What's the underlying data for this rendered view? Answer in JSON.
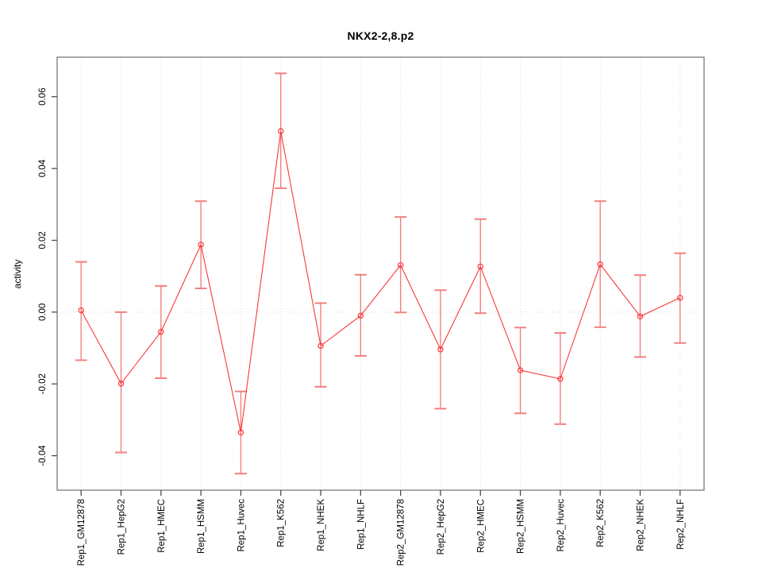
{
  "chart_data": {
    "type": "line",
    "title": "NKX2-2,8.p2",
    "ylabel": "activity",
    "xlabel": "",
    "categories": [
      "Rep1_GM12878",
      "Rep1_HepG2",
      "Rep1_HMEC",
      "Rep1_HSMM",
      "Rep1_Huvec",
      "Rep1_K562",
      "Rep1_NHEK",
      "Rep1_NHLF",
      "Rep2_GM12878",
      "Rep2_HepG2",
      "Rep2_HMEC",
      "Rep2_HSMM",
      "Rep2_Huvec",
      "Rep2_K562",
      "Rep2_NHEK",
      "Rep2_NHLF"
    ],
    "series": [
      {
        "name": "activity",
        "values": [
          0.0005,
          -0.0199,
          -0.0055,
          0.0188,
          -0.0335,
          0.0504,
          -0.0094,
          -0.001,
          0.0131,
          -0.0104,
          0.0127,
          -0.0162,
          -0.0186,
          0.0133,
          -0.0012,
          0.004
        ],
        "upper": [
          0.014,
          0.0,
          0.0073,
          0.0309,
          -0.0221,
          0.0665,
          0.0025,
          0.0104,
          0.0265,
          0.0061,
          0.0259,
          -0.0043,
          -0.0058,
          0.0309,
          0.0103,
          0.0164
        ],
        "lower": [
          -0.0134,
          -0.0391,
          -0.0184,
          0.0066,
          -0.045,
          0.0345,
          -0.0208,
          -0.0122,
          -0.0001,
          -0.0269,
          -0.0003,
          -0.0282,
          -0.0312,
          -0.0042,
          -0.0125,
          -0.0086
        ]
      }
    ],
    "yticks": [
      -0.04,
      -0.02,
      0.0,
      0.02,
      0.04,
      0.06
    ],
    "ytick_labels": [
      "-0.04",
      "-0.02",
      "0.00",
      "0.02",
      "0.04",
      "0.06"
    ],
    "ylim": [
      -0.0496,
      0.071
    ],
    "zero_reference_line": 0.0,
    "grid": {
      "vertical_dotted": true,
      "horizontal_zero_dotted": true
    },
    "legend_position": "none",
    "marker": "open-circle",
    "colors": {
      "line": "#f93838",
      "marker": "#f93838",
      "error_bar": "#f28080",
      "grid": "#dcdcdc",
      "zero_line": "#d6d6d6",
      "box": "#8c8c8c",
      "tick": "#4d4d4d",
      "text": "#000000",
      "background": "#ffffff"
    }
  }
}
